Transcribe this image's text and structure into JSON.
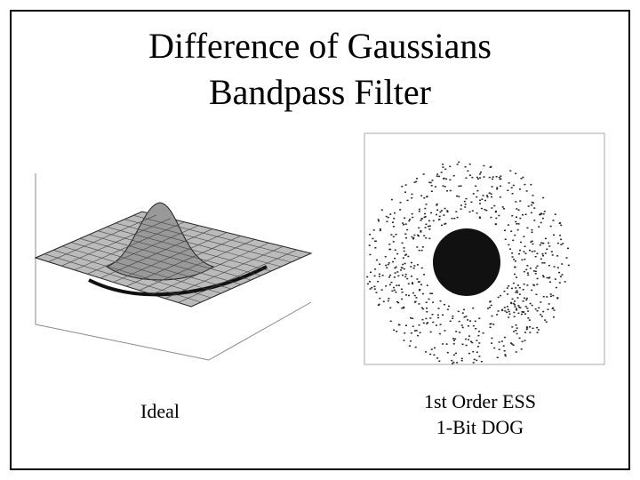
{
  "title": [
    "Difference of Gaussians",
    "Bandpass Filter"
  ],
  "captions": [
    {
      "lines": [
        "Ideal"
      ]
    },
    {
      "lines": [
        "1st Order ESS",
        "1-Bit DOG"
      ]
    }
  ]
}
